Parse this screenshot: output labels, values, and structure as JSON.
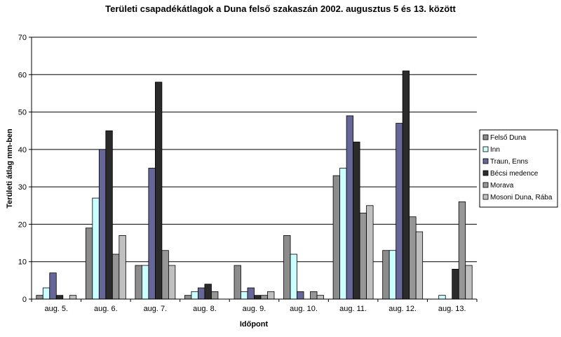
{
  "chart_data": {
    "type": "bar",
    "title": "Területi csapadékátlagok a Duna felső szakaszán 2002. augusztus 5 és 13. között",
    "xlabel": "Időpont",
    "ylabel": "Területi átlag mm-ben",
    "ylim": [
      0,
      70
    ],
    "yticks": [
      0,
      10,
      20,
      30,
      40,
      50,
      60,
      70
    ],
    "grid": true,
    "legend_position": "right",
    "categories": [
      "aug. 5.",
      "aug. 6.",
      "aug. 7.",
      "aug. 8.",
      "aug. 9.",
      "aug. 10.",
      "aug. 11.",
      "aug. 12.",
      "aug. 13."
    ],
    "series": [
      {
        "name": "Felső Duna",
        "color": "#8c8c8c",
        "values": [
          1,
          19,
          9,
          1,
          9,
          17,
          33,
          13,
          0
        ]
      },
      {
        "name": "Inn",
        "color": "#ccffff",
        "values": [
          3,
          27,
          9,
          2,
          2,
          12,
          35,
          13,
          1
        ]
      },
      {
        "name": "Traun,  Enns",
        "color": "#666699",
        "values": [
          7,
          40,
          35,
          3,
          3,
          2,
          49,
          47,
          0
        ]
      },
      {
        "name": "Bécsi medence",
        "color": "#2b2b2b",
        "values": [
          1,
          45,
          58,
          4,
          1,
          0,
          42,
          61,
          8
        ]
      },
      {
        "name": "Morava",
        "color": "#969696",
        "values": [
          0,
          12,
          13,
          2,
          1,
          2,
          23,
          22,
          26
        ]
      },
      {
        "name": "Mosoni Duna,  Rába",
        "color": "#c0c0c0",
        "values": [
          1,
          17,
          9,
          0,
          2,
          1,
          25,
          18,
          9
        ]
      }
    ]
  }
}
